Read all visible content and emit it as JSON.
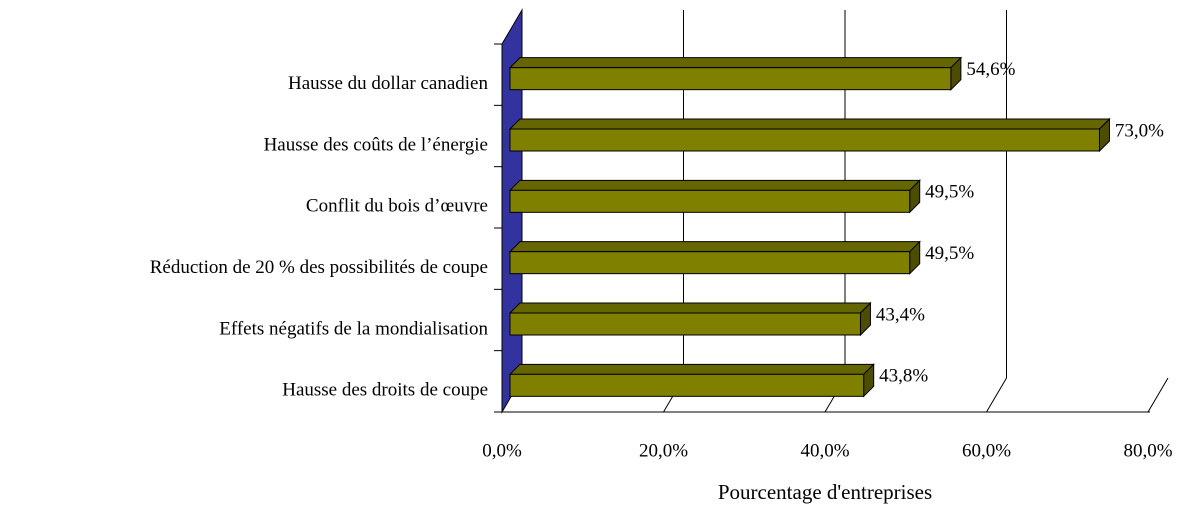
{
  "chart_data": {
    "type": "bar3d",
    "categories": [
      "Hausse du dollar canadien",
      "Hausse des coûts de l’énergie",
      "Conflit du bois d’œuvre",
      "Réduction de 20 % des possibilités de coupe",
      "Effets négatifs de la mondialisation",
      "Hausse des droits de coupe"
    ],
    "values": [
      54.6,
      73.0,
      49.5,
      49.5,
      43.4,
      43.8
    ],
    "value_labels": [
      "54,6%",
      "73,0%",
      "49,5%",
      "49,5%",
      "43,4%",
      "43,8%"
    ],
    "color": "#808000",
    "xlabel": "Pourcentage d'entreprises",
    "xlim": [
      0,
      80
    ],
    "xticks": [
      {
        "value": 0,
        "label": "0,0%"
      },
      {
        "value": 20,
        "label": "20,0%"
      },
      {
        "value": 40,
        "label": "40,0%"
      },
      {
        "value": 60,
        "label": "60,0%"
      },
      {
        "value": 80,
        "label": "80,0%"
      }
    ],
    "grid": true
  }
}
